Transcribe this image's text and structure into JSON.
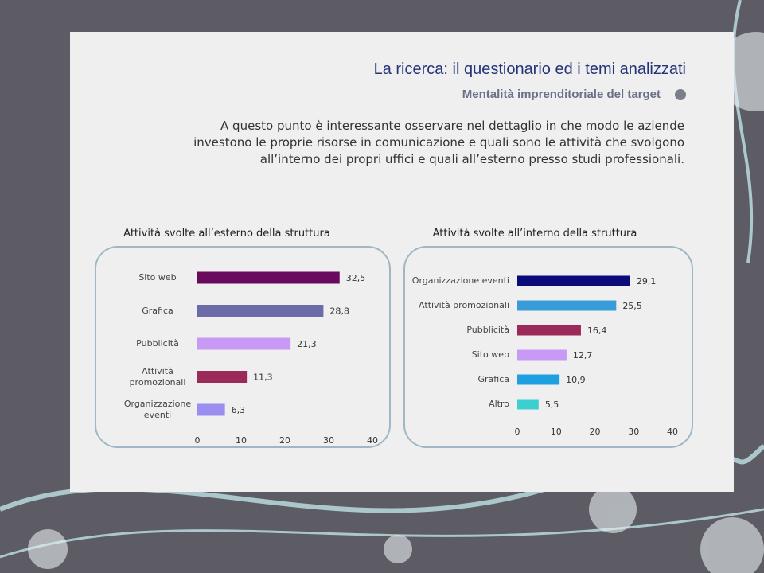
{
  "title": "La ricerca: il questionario ed i temi analizzati",
  "subtitle": "Mentalità imprenditoriale del target",
  "paragraph": "A questo punto è interessante osservare nel dettaglio in che modo le aziende investono le proprie risorse in comunicazione e quali sono le attività che svolgono all’interno dei propri uffici e quali all’esterno presso studi professionali.",
  "chart_data": [
    {
      "type": "bar",
      "orientation": "horizontal",
      "title": "Attività svolte all’esterno della struttura",
      "categories": [
        "Sito web",
        "Grafica",
        "Pubblicità",
        "Attività promozionali",
        "Organizzazione eventi"
      ],
      "values": [
        32.5,
        28.8,
        21.3,
        11.3,
        6.3
      ],
      "value_labels": [
        "32,5",
        "28,8",
        "21,3",
        "11,3",
        "6,3"
      ],
      "colors": [
        "#6a0a5e",
        "#6b6ba8",
        "#c99af5",
        "#9b2a5a",
        "#9a8ff0"
      ],
      "xlim": [
        0,
        40
      ],
      "xticks": [
        0,
        10,
        20,
        30,
        40
      ]
    },
    {
      "type": "bar",
      "orientation": "horizontal",
      "title": "Attività svolte all’interno della struttura",
      "categories": [
        "Organizzazione eventi",
        "Attività promozionali",
        "Pubblicità",
        "Sito web",
        "Grafica",
        "Altro"
      ],
      "values": [
        29.1,
        25.5,
        16.4,
        12.7,
        10.9,
        5.5
      ],
      "value_labels": [
        "29,1",
        "25,5",
        "16,4",
        "12,7",
        "10,9",
        "5,5"
      ],
      "colors": [
        "#0a0a7a",
        "#3a9bd9",
        "#9b2a5a",
        "#c99af5",
        "#1ea0e0",
        "#3ccfcf"
      ],
      "xlim": [
        0,
        40
      ],
      "xticks": [
        0,
        10,
        20,
        30,
        40
      ]
    }
  ]
}
